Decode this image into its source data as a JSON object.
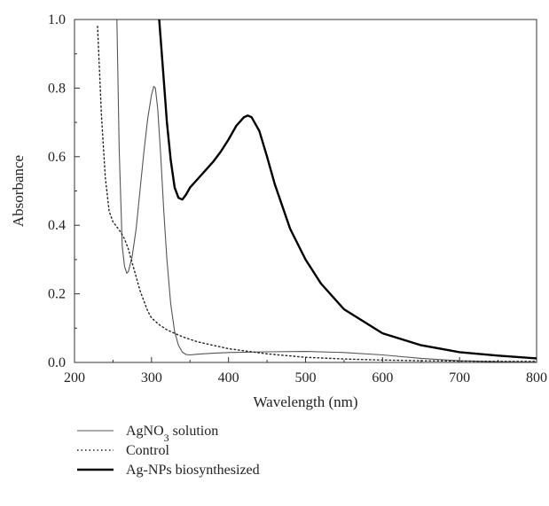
{
  "chart_data": {
    "type": "line",
    "xlabel": "Wavelength (nm)",
    "ylabel": "Absorbance",
    "xlim": [
      200,
      800
    ],
    "ylim": [
      0,
      1.0
    ],
    "x_ticks": [
      200,
      300,
      400,
      500,
      600,
      700,
      800
    ],
    "x_tick_labels": [
      "200",
      "300",
      "400",
      "500",
      "600",
      "700",
      "800"
    ],
    "y_ticks": [
      0,
      0.2,
      0.4,
      0.6,
      0.8,
      1.0
    ],
    "y_tick_labels": [
      "0.0",
      "0.2",
      "0.4",
      "0.6",
      "0.8",
      "1.0"
    ],
    "grid": false,
    "legend_position": "bottom-left",
    "series": [
      {
        "name": "AgNO",
        "name_subscript": "3",
        "name_suffix": " solution",
        "style": "thin-solid",
        "color": "#555555",
        "x": [
          255,
          258,
          262,
          265,
          268,
          270,
          275,
          280,
          285,
          290,
          295,
          300,
          303,
          305,
          308,
          312,
          316,
          320,
          325,
          330,
          335,
          340,
          345,
          350,
          360,
          380,
          400,
          450,
          500,
          550,
          600,
          650,
          700,
          750,
          800
        ],
        "y": [
          1.0,
          0.62,
          0.34,
          0.28,
          0.26,
          0.265,
          0.31,
          0.39,
          0.5,
          0.61,
          0.71,
          0.78,
          0.805,
          0.8,
          0.74,
          0.6,
          0.44,
          0.3,
          0.17,
          0.09,
          0.05,
          0.03,
          0.023,
          0.022,
          0.024,
          0.027,
          0.029,
          0.031,
          0.032,
          0.029,
          0.022,
          0.012,
          0.005,
          0.002,
          0.001
        ]
      },
      {
        "name": "Control",
        "style": "dotted",
        "color": "#222222",
        "x": [
          230,
          235,
          240,
          245,
          250,
          255,
          260,
          265,
          270,
          275,
          280,
          285,
          290,
          295,
          300,
          310,
          320,
          340,
          360,
          400,
          450,
          500,
          550,
          600,
          650,
          700,
          750,
          800
        ],
        "y": [
          0.98,
          0.72,
          0.54,
          0.44,
          0.41,
          0.395,
          0.38,
          0.36,
          0.33,
          0.29,
          0.25,
          0.21,
          0.18,
          0.15,
          0.13,
          0.11,
          0.095,
          0.075,
          0.06,
          0.04,
          0.025,
          0.015,
          0.01,
          0.007,
          0.005,
          0.004,
          0.003,
          0.003
        ]
      },
      {
        "name": "Ag-NPs biosynthesized",
        "style": "thick-solid",
        "color": "#000000",
        "x": [
          310,
          315,
          320,
          325,
          330,
          335,
          340,
          345,
          350,
          360,
          370,
          380,
          390,
          400,
          410,
          420,
          425,
          430,
          440,
          450,
          460,
          480,
          500,
          520,
          550,
          600,
          650,
          700,
          750,
          800
        ],
        "y": [
          1.0,
          0.85,
          0.7,
          0.59,
          0.51,
          0.48,
          0.475,
          0.49,
          0.51,
          0.535,
          0.56,
          0.585,
          0.615,
          0.65,
          0.69,
          0.715,
          0.72,
          0.715,
          0.675,
          0.6,
          0.52,
          0.39,
          0.3,
          0.23,
          0.155,
          0.085,
          0.05,
          0.03,
          0.02,
          0.012
        ]
      }
    ]
  }
}
